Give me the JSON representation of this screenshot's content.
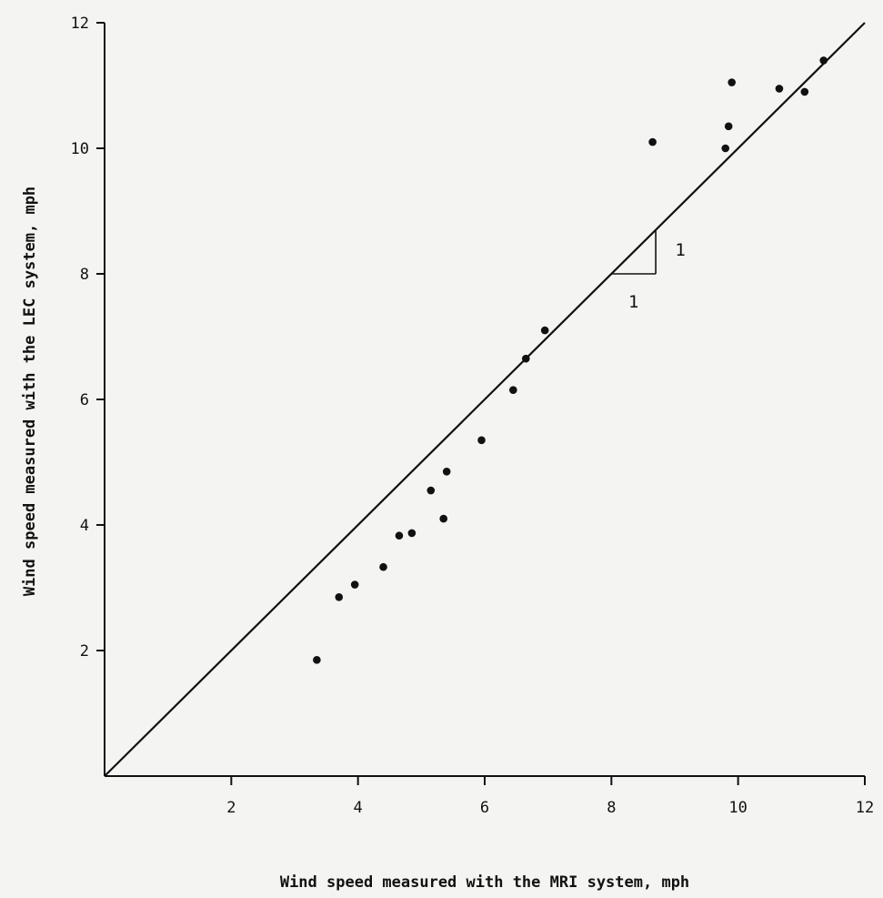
{
  "chart_data": {
    "type": "scatter",
    "title": "",
    "xlabel": "Wind speed measured with the MRI system, mph",
    "ylabel": "Wind speed measured with the LEC system, mph",
    "xlim": [
      0,
      12
    ],
    "ylim": [
      0,
      12
    ],
    "x_ticks": [
      2,
      4,
      6,
      8,
      10,
      12
    ],
    "y_ticks": [
      2,
      4,
      6,
      8,
      10,
      12
    ],
    "grid": false,
    "reference_line": {
      "slope": 1,
      "intercept": 0,
      "from": [
        0,
        0
      ],
      "to": [
        12,
        12
      ]
    },
    "slope_indicator": {
      "run_label": "1",
      "rise_label": "1",
      "run_from": [
        8,
        8
      ],
      "run_to": [
        8.7,
        8
      ],
      "rise_to": [
        8.7,
        8.7
      ]
    },
    "points": [
      {
        "x": 3.35,
        "y": 1.85
      },
      {
        "x": 3.7,
        "y": 2.85
      },
      {
        "x": 3.95,
        "y": 3.05
      },
      {
        "x": 4.4,
        "y": 3.33
      },
      {
        "x": 4.65,
        "y": 3.83
      },
      {
        "x": 4.85,
        "y": 3.87
      },
      {
        "x": 5.15,
        "y": 4.55
      },
      {
        "x": 5.35,
        "y": 4.1
      },
      {
        "x": 5.4,
        "y": 4.85
      },
      {
        "x": 5.95,
        "y": 5.35
      },
      {
        "x": 6.45,
        "y": 6.15
      },
      {
        "x": 6.65,
        "y": 6.65
      },
      {
        "x": 6.95,
        "y": 7.1
      },
      {
        "x": 8.65,
        "y": 10.1
      },
      {
        "x": 9.8,
        "y": 10.0
      },
      {
        "x": 9.85,
        "y": 10.35
      },
      {
        "x": 9.9,
        "y": 11.05
      },
      {
        "x": 10.65,
        "y": 10.95
      },
      {
        "x": 11.05,
        "y": 10.9
      },
      {
        "x": 11.35,
        "y": 11.4
      }
    ]
  }
}
